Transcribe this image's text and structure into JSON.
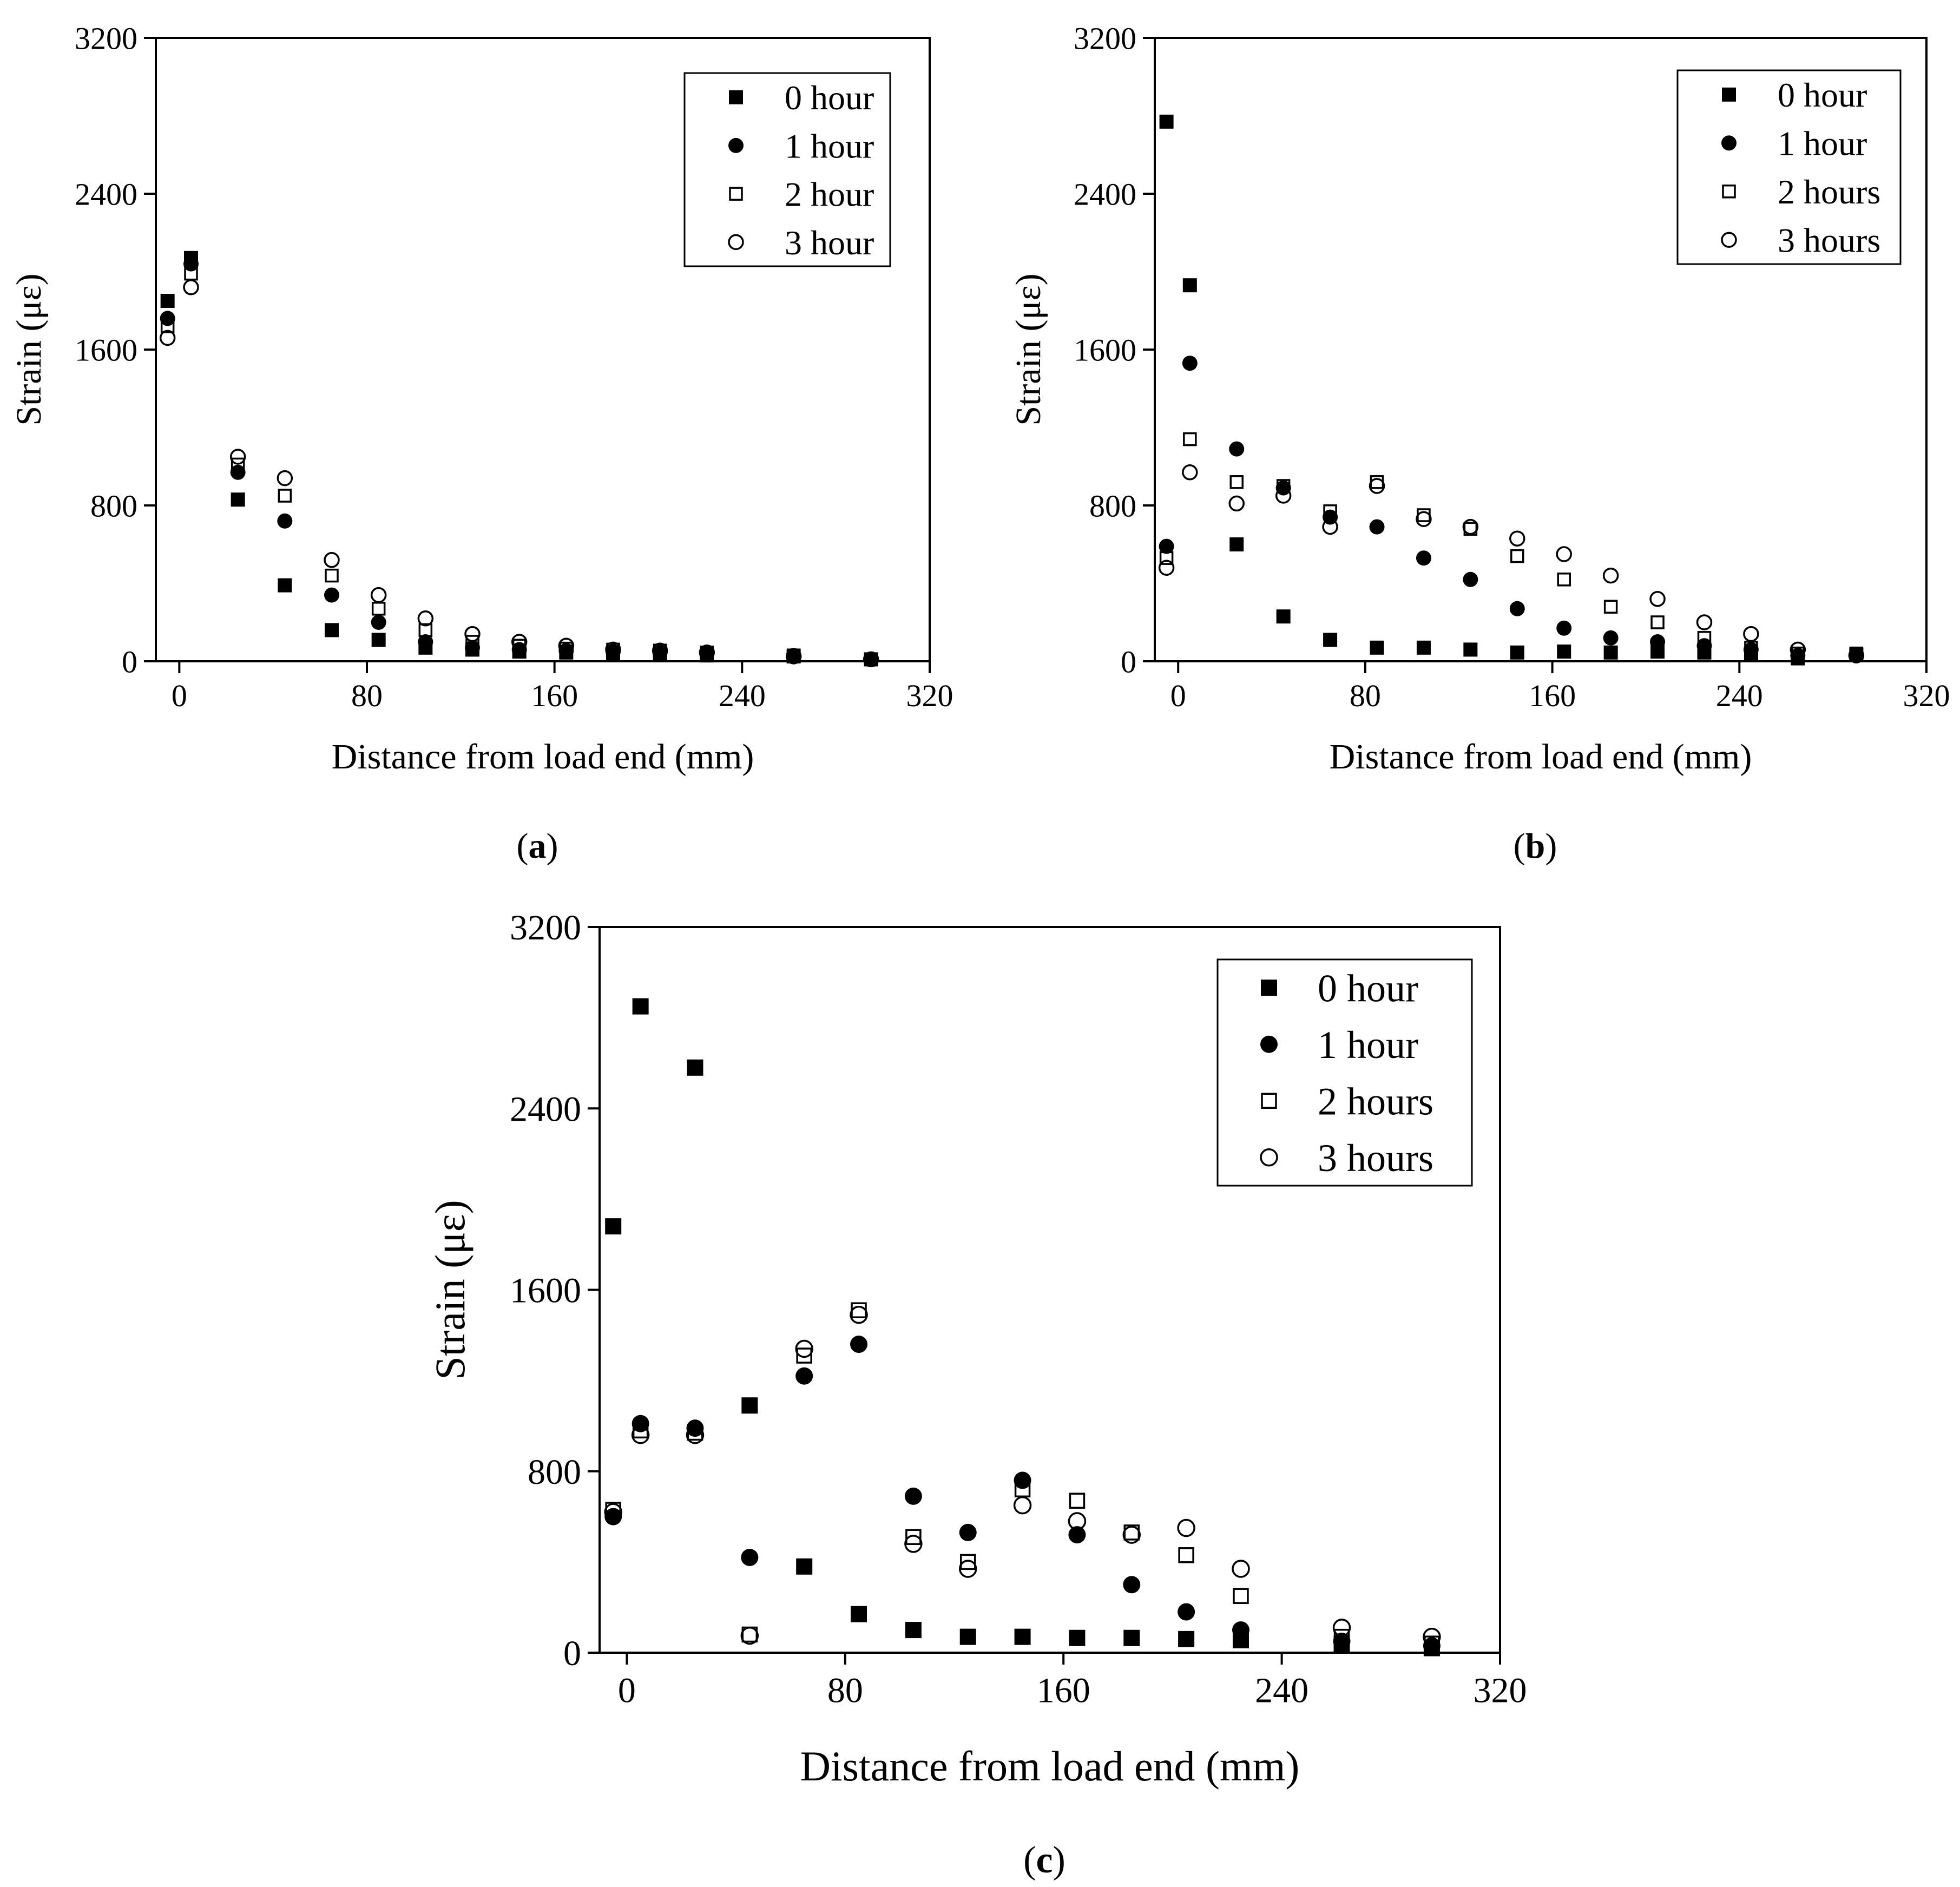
{
  "figure": {
    "colors": {
      "axis": "#000000",
      "marker": "#000000",
      "background": "#ffffff"
    },
    "marker_styles": [
      "filled-square",
      "filled-circle",
      "open-square",
      "open-circle"
    ]
  },
  "chart_data": [
    {
      "type": "scatter",
      "caption_open": "(",
      "caption_letter": "a",
      "caption_close": ")",
      "xlabel": "Distance from load end (mm)",
      "ylabel": "Strain (με)",
      "xlim": [
        -10,
        320
      ],
      "ylim": [
        0,
        3200
      ],
      "xticks": [
        0,
        80,
        160,
        240,
        320
      ],
      "yticks": [
        0,
        800,
        1600,
        2400,
        3200
      ],
      "xtick_labels": [
        "0",
        "80",
        "160",
        "240",
        "320"
      ],
      "ytick_labels": [
        "0",
        "800",
        "1600",
        "2400",
        "3200"
      ],
      "legend_position": "top-right",
      "series": [
        {
          "name": "0 hour",
          "marker": "filled-square",
          "points": [
            [
              -5,
              1850
            ],
            [
              5,
              2070
            ],
            [
              25,
              830
            ],
            [
              45,
              390
            ],
            [
              65,
              160
            ],
            [
              85,
              110
            ],
            [
              105,
              70
            ],
            [
              125,
              60
            ],
            [
              145,
              50
            ],
            [
              165,
              45
            ],
            [
              185,
              40
            ],
            [
              205,
              35
            ],
            [
              225,
              30
            ],
            [
              262,
              25
            ],
            [
              295,
              10
            ]
          ]
        },
        {
          "name": "1 hour",
          "marker": "filled-circle",
          "points": [
            [
              -5,
              1760
            ],
            [
              5,
              2040
            ],
            [
              25,
              970
            ],
            [
              45,
              720
            ],
            [
              65,
              340
            ],
            [
              85,
              200
            ],
            [
              105,
              100
            ],
            [
              125,
              70
            ],
            [
              145,
              60
            ],
            [
              165,
              55
            ],
            [
              185,
              50
            ],
            [
              205,
              45
            ],
            [
              225,
              40
            ],
            [
              262,
              30
            ],
            [
              295,
              10
            ]
          ]
        },
        {
          "name": "2 hour",
          "marker": "open-square",
          "points": [
            [
              -5,
              1720
            ],
            [
              5,
              1990
            ],
            [
              25,
              1010
            ],
            [
              45,
              850
            ],
            [
              65,
              440
            ],
            [
              85,
              270
            ],
            [
              105,
              160
            ],
            [
              125,
              100
            ],
            [
              145,
              80
            ],
            [
              165,
              65
            ],
            [
              185,
              60
            ],
            [
              205,
              55
            ],
            [
              225,
              45
            ],
            [
              262,
              30
            ],
            [
              295,
              10
            ]
          ]
        },
        {
          "name": "3 hour",
          "marker": "open-circle",
          "points": [
            [
              -5,
              1660
            ],
            [
              5,
              1920
            ],
            [
              25,
              1050
            ],
            [
              45,
              940
            ],
            [
              65,
              520
            ],
            [
              85,
              340
            ],
            [
              105,
              220
            ],
            [
              125,
              140
            ],
            [
              145,
              100
            ],
            [
              165,
              80
            ],
            [
              185,
              60
            ],
            [
              205,
              55
            ],
            [
              225,
              45
            ],
            [
              262,
              25
            ],
            [
              295,
              10
            ]
          ]
        }
      ]
    },
    {
      "type": "scatter",
      "caption_open": "(",
      "caption_letter": "b",
      "caption_close": ")",
      "xlabel": "Distance from load end (mm)",
      "ylabel": "Strain (με)",
      "xlim": [
        -10,
        320
      ],
      "ylim": [
        0,
        3200
      ],
      "xticks": [
        0,
        80,
        160,
        240,
        320
      ],
      "yticks": [
        0,
        800,
        1600,
        2400,
        3200
      ],
      "xtick_labels": [
        "0",
        "80",
        "160",
        "240",
        "320"
      ],
      "ytick_labels": [
        "0",
        "800",
        "1600",
        "2400",
        "3200"
      ],
      "legend_position": "top-right",
      "series": [
        {
          "name": "0 hour",
          "marker": "filled-square",
          "points": [
            [
              -5,
              2770
            ],
            [
              5,
              1930
            ],
            [
              25,
              600
            ],
            [
              45,
              230
            ],
            [
              65,
              110
            ],
            [
              85,
              70
            ],
            [
              105,
              70
            ],
            [
              125,
              60
            ],
            [
              145,
              45
            ],
            [
              165,
              50
            ],
            [
              185,
              45
            ],
            [
              205,
              50
            ],
            [
              225,
              45
            ],
            [
              245,
              40
            ],
            [
              265,
              15
            ],
            [
              290,
              35
            ]
          ]
        },
        {
          "name": "1 hour",
          "marker": "filled-circle",
          "points": [
            [
              -5,
              590
            ],
            [
              5,
              1530
            ],
            [
              25,
              1090
            ],
            [
              45,
              890
            ],
            [
              65,
              740
            ],
            [
              85,
              690
            ],
            [
              105,
              530
            ],
            [
              125,
              420
            ],
            [
              145,
              270
            ],
            [
              165,
              170
            ],
            [
              185,
              120
            ],
            [
              205,
              100
            ],
            [
              225,
              80
            ],
            [
              245,
              60
            ],
            [
              265,
              30
            ],
            [
              290,
              30
            ]
          ]
        },
        {
          "name": "2 hours",
          "marker": "open-square",
          "points": [
            [
              -5,
              530
            ],
            [
              5,
              1140
            ],
            [
              25,
              920
            ],
            [
              45,
              900
            ],
            [
              65,
              770
            ],
            [
              85,
              920
            ],
            [
              105,
              750
            ],
            [
              125,
              680
            ],
            [
              145,
              540
            ],
            [
              165,
              420
            ],
            [
              185,
              280
            ],
            [
              205,
              200
            ],
            [
              225,
              120
            ],
            [
              245,
              70
            ],
            [
              265,
              40
            ],
            [
              290,
              40
            ]
          ]
        },
        {
          "name": "3 hours",
          "marker": "open-circle",
          "points": [
            [
              -5,
              480
            ],
            [
              5,
              970
            ],
            [
              25,
              810
            ],
            [
              45,
              850
            ],
            [
              65,
              690
            ],
            [
              85,
              900
            ],
            [
              105,
              730
            ],
            [
              125,
              690
            ],
            [
              145,
              630
            ],
            [
              165,
              550
            ],
            [
              185,
              440
            ],
            [
              205,
              320
            ],
            [
              225,
              200
            ],
            [
              245,
              140
            ],
            [
              265,
              60
            ],
            [
              290,
              30
            ]
          ]
        }
      ]
    },
    {
      "type": "scatter",
      "caption_open": "(",
      "caption_letter": "c",
      "caption_close": ")",
      "xlabel": "Distance from load end (mm)",
      "ylabel": "Strain (με)",
      "xlim": [
        -10,
        320
      ],
      "ylim": [
        0,
        3200
      ],
      "xticks": [
        0,
        80,
        160,
        240,
        320
      ],
      "yticks": [
        0,
        800,
        1600,
        2400,
        3200
      ],
      "xtick_labels": [
        "0",
        "80",
        "160",
        "240",
        "320"
      ],
      "ytick_labels": [
        "0",
        "800",
        "1600",
        "2400",
        "3200"
      ],
      "legend_position": "top-right",
      "series": [
        {
          "name": "0 hour",
          "marker": "filled-square",
          "points": [
            [
              -5,
              1880
            ],
            [
              5,
              2850
            ],
            [
              25,
              2580
            ],
            [
              45,
              1090
            ],
            [
              65,
              380
            ],
            [
              85,
              170
            ],
            [
              105,
              100
            ],
            [
              125,
              70
            ],
            [
              145,
              70
            ],
            [
              165,
              65
            ],
            [
              185,
              65
            ],
            [
              205,
              60
            ],
            [
              225,
              55
            ],
            [
              262,
              40
            ],
            [
              295,
              20
            ]
          ]
        },
        {
          "name": "1 hour",
          "marker": "filled-circle",
          "points": [
            [
              -5,
              600
            ],
            [
              5,
              1010
            ],
            [
              25,
              990
            ],
            [
              45,
              420
            ],
            [
              65,
              1220
            ],
            [
              85,
              1360
            ],
            [
              105,
              690
            ],
            [
              125,
              530
            ],
            [
              145,
              760
            ],
            [
              165,
              520
            ],
            [
              185,
              300
            ],
            [
              205,
              180
            ],
            [
              225,
              100
            ],
            [
              262,
              50
            ],
            [
              295,
              30
            ]
          ]
        },
        {
          "name": "2 hours",
          "marker": "open-square",
          "points": [
            [
              -5,
              630
            ],
            [
              5,
              980
            ],
            [
              25,
              970
            ],
            [
              45,
              80
            ],
            [
              65,
              1310
            ],
            [
              85,
              1510
            ],
            [
              105,
              510
            ],
            [
              125,
              400
            ],
            [
              145,
              720
            ],
            [
              165,
              670
            ],
            [
              185,
              530
            ],
            [
              205,
              430
            ],
            [
              225,
              250
            ],
            [
              262,
              70
            ],
            [
              295,
              40
            ]
          ]
        },
        {
          "name": "3 hours",
          "marker": "open-circle",
          "points": [
            [
              -5,
              620
            ],
            [
              5,
              960
            ],
            [
              25,
              960
            ],
            [
              45,
              75
            ],
            [
              65,
              1340
            ],
            [
              85,
              1490
            ],
            [
              105,
              480
            ],
            [
              125,
              370
            ],
            [
              145,
              650
            ],
            [
              165,
              580
            ],
            [
              185,
              520
            ],
            [
              205,
              550
            ],
            [
              225,
              370
            ],
            [
              262,
              110
            ],
            [
              295,
              70
            ]
          ]
        }
      ]
    }
  ]
}
